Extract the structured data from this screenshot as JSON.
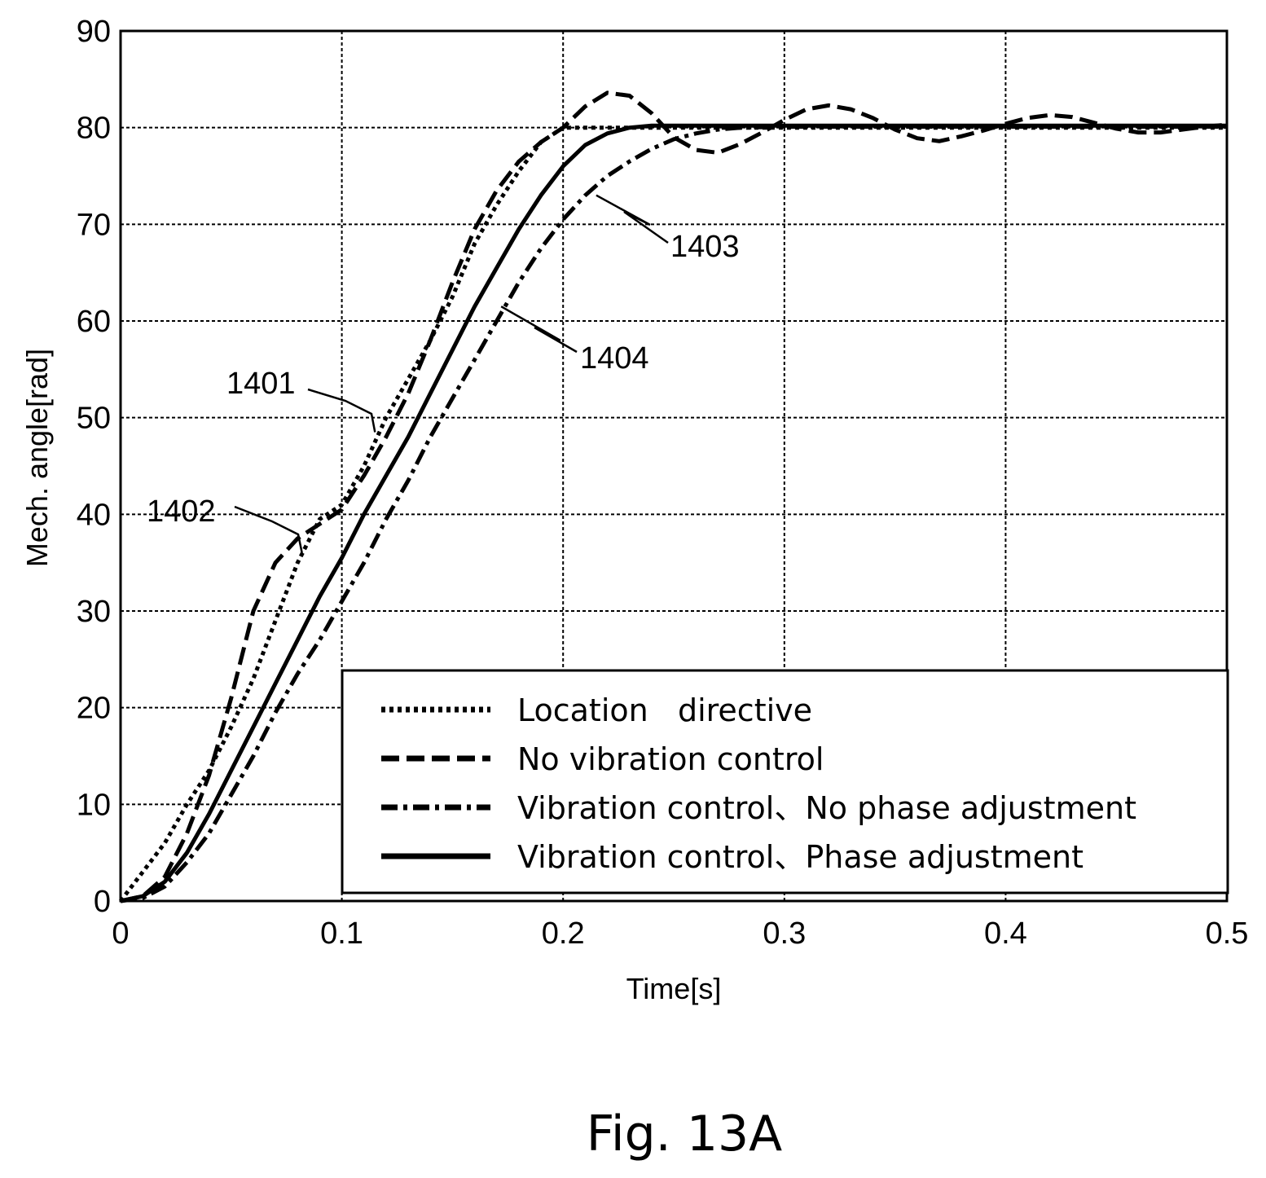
{
  "chart_data": {
    "type": "line",
    "xlabel": "Time[s]",
    "ylabel": "Mech. angle[rad]",
    "xlim": [
      0,
      0.5
    ],
    "ylim": [
      0,
      90
    ],
    "xticks": [
      0,
      0.1,
      0.2,
      0.3,
      0.4,
      0.5
    ],
    "xtick_labels": [
      "0",
      "0.1",
      "0.2",
      "0.3",
      "0.4",
      "0.5"
    ],
    "yticks": [
      0,
      10,
      20,
      30,
      40,
      50,
      60,
      70,
      80,
      90
    ],
    "ytick_labels": [
      "0",
      "10",
      "20",
      "30",
      "40",
      "50",
      "60",
      "70",
      "80",
      "90"
    ],
    "grid": true,
    "legend_position": "bottom-right",
    "series": [
      {
        "name": "Location   directive",
        "style": "dotted",
        "x": [
          0,
          0.01,
          0.02,
          0.03,
          0.04,
          0.05,
          0.06,
          0.07,
          0.08,
          0.09,
          0.1,
          0.11,
          0.12,
          0.13,
          0.14,
          0.15,
          0.16,
          0.17,
          0.18,
          0.19,
          0.2,
          0.21,
          0.22,
          0.25,
          0.3,
          0.35,
          0.4,
          0.45,
          0.5
        ],
        "y": [
          0,
          3,
          6,
          10,
          13.5,
          18,
          23,
          29,
          35,
          39.5,
          41,
          45,
          50,
          54,
          58,
          62.5,
          68,
          72,
          75.5,
          78.5,
          80,
          80,
          80,
          80,
          80,
          80,
          80,
          80,
          80
        ]
      },
      {
        "name": "No vibration control",
        "style": "dashed",
        "x": [
          0,
          0.01,
          0.02,
          0.03,
          0.04,
          0.05,
          0.06,
          0.07,
          0.08,
          0.09,
          0.1,
          0.11,
          0.12,
          0.13,
          0.14,
          0.15,
          0.16,
          0.17,
          0.18,
          0.19,
          0.2,
          0.21,
          0.22,
          0.23,
          0.24,
          0.25,
          0.26,
          0.27,
          0.28,
          0.29,
          0.3,
          0.31,
          0.32,
          0.33,
          0.34,
          0.35,
          0.36,
          0.37,
          0.38,
          0.39,
          0.4,
          0.41,
          0.42,
          0.43,
          0.44,
          0.45,
          0.46,
          0.47,
          0.48,
          0.49,
          0.5
        ],
        "y": [
          0,
          0.5,
          2.5,
          7,
          13,
          21,
          30,
          35,
          37.5,
          39,
          40.5,
          44,
          48,
          52.5,
          58,
          64,
          69.5,
          73.5,
          76.5,
          78.5,
          80,
          82.2,
          83.6,
          83.3,
          81.5,
          79,
          77.7,
          77.4,
          78.3,
          79.5,
          80.8,
          81.9,
          82.3,
          81.9,
          81,
          79.8,
          78.9,
          78.6,
          79.1,
          79.7,
          80.4,
          81,
          81.3,
          81.1,
          80.5,
          79.9,
          79.5,
          79.5,
          79.8,
          80.1,
          80.3
        ]
      },
      {
        "name": "Vibration control、No phase adjustment",
        "style": "dashdot",
        "x": [
          0,
          0.01,
          0.02,
          0.03,
          0.04,
          0.05,
          0.06,
          0.07,
          0.08,
          0.09,
          0.1,
          0.11,
          0.12,
          0.13,
          0.14,
          0.15,
          0.16,
          0.17,
          0.18,
          0.19,
          0.2,
          0.21,
          0.22,
          0.23,
          0.24,
          0.25,
          0.26,
          0.27,
          0.28,
          0.3,
          0.35,
          0.4,
          0.45,
          0.5
        ],
        "y": [
          0,
          0.3,
          1.5,
          4,
          7,
          11,
          15,
          19.5,
          23.5,
          27,
          31,
          35,
          39.5,
          43.5,
          48,
          52,
          56,
          60,
          64,
          67.5,
          70.5,
          73,
          75,
          76.5,
          77.8,
          78.8,
          79.4,
          79.8,
          80,
          80.1,
          80.1,
          80.1,
          80.1,
          80.1
        ]
      },
      {
        "name": "Vibration control、Phase adjustment",
        "style": "solid",
        "x": [
          0,
          0.01,
          0.02,
          0.03,
          0.04,
          0.05,
          0.06,
          0.07,
          0.08,
          0.09,
          0.1,
          0.11,
          0.12,
          0.13,
          0.14,
          0.15,
          0.16,
          0.17,
          0.18,
          0.19,
          0.2,
          0.21,
          0.22,
          0.23,
          0.24,
          0.25,
          0.3,
          0.35,
          0.4,
          0.45,
          0.5
        ],
        "y": [
          0,
          0.5,
          2,
          5,
          9,
          13.5,
          18,
          22.5,
          27,
          31.5,
          35.5,
          40,
          44,
          48,
          52.5,
          57,
          61.5,
          65.5,
          69.5,
          73,
          76,
          78.2,
          79.4,
          80,
          80.2,
          80.2,
          80.2,
          80.2,
          80.2,
          80.2,
          80.2
        ]
      }
    ],
    "annotations": [
      {
        "text": "1401",
        "x": 0.115,
        "y": 48.5
      },
      {
        "text": "1402",
        "x": 0.082,
        "y": 36
      },
      {
        "text": "1403",
        "x": 0.215,
        "y": 73
      },
      {
        "text": "1404",
        "x": 0.172,
        "y": 61.5
      }
    ]
  },
  "figure_label": "Fig. 13A"
}
